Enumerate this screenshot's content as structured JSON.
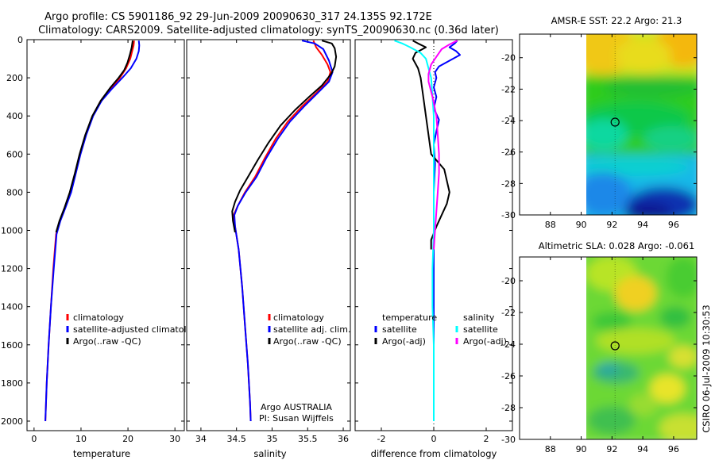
{
  "header": {
    "title_line1": "Argo profile: CS 5901186_92 29-Jun-2009 20090630_317 24.135S 92.172E",
    "title_line2": "Climatology: CARS2009. Satellite-adjusted climatology: synTS_20090630.nc (0.36d later)"
  },
  "side_label": "CSIRO 06-Jul-2009 10:30:53",
  "colors": {
    "red": "#ff0000",
    "blue": "#0000ff",
    "black": "#000000",
    "cyan": "#00ffff",
    "magenta": "#ff00ff"
  },
  "chart_data": [
    {
      "type": "line",
      "id": "temperature",
      "xlabel": "temperature",
      "ylabel": "",
      "xlim": [
        -1.5,
        32
      ],
      "ylim": [
        2050,
        0
      ],
      "xticks": [
        0,
        10,
        20,
        30
      ],
      "yticks": [
        0,
        200,
        400,
        600,
        800,
        1000,
        1200,
        1400,
        1600,
        1800,
        2000
      ],
      "legend": [
        "climatology",
        "satellite-adjusted climatology",
        "Argo(..raw -QC)"
      ],
      "series": [
        {
          "name": "climatology",
          "color": "red",
          "points": [
            [
              21.3,
              5
            ],
            [
              21.2,
              30
            ],
            [
              20.9,
              60
            ],
            [
              20.5,
              100
            ],
            [
              19.6,
              150
            ],
            [
              18.3,
              200
            ],
            [
              16.2,
              260
            ],
            [
              14.2,
              320
            ],
            [
              12.5,
              400
            ],
            [
              11.0,
              500
            ],
            [
              9.8,
              600
            ],
            [
              8.8,
              700
            ],
            [
              7.8,
              800
            ],
            [
              6.6,
              880
            ],
            [
              5.5,
              950
            ],
            [
              4.7,
              1020
            ],
            [
              4.1,
              1200
            ],
            [
              3.6,
              1400
            ],
            [
              3.1,
              1600
            ],
            [
              2.7,
              1800
            ],
            [
              2.4,
              2000
            ]
          ]
        },
        {
          "name": "satellite-adjusted climatology",
          "color": "blue",
          "points": [
            [
              22.3,
              5
            ],
            [
              22.4,
              30
            ],
            [
              22.3,
              60
            ],
            [
              21.8,
              100
            ],
            [
              20.6,
              150
            ],
            [
              18.8,
              200
            ],
            [
              16.5,
              260
            ],
            [
              14.4,
              320
            ],
            [
              12.6,
              400
            ],
            [
              11.1,
              500
            ],
            [
              9.9,
              600
            ],
            [
              8.9,
              700
            ],
            [
              7.9,
              800
            ],
            [
              6.7,
              880
            ],
            [
              5.6,
              950
            ],
            [
              4.8,
              1020
            ],
            [
              4.2,
              1200
            ],
            [
              3.6,
              1400
            ],
            [
              3.1,
              1600
            ],
            [
              2.7,
              1800
            ],
            [
              2.4,
              2000
            ]
          ]
        },
        {
          "name": "Argo(..raw -QC)",
          "color": "black",
          "points": [
            [
              21.0,
              5
            ],
            [
              20.8,
              40
            ],
            [
              20.4,
              80
            ],
            [
              19.9,
              120
            ],
            [
              19.2,
              160
            ],
            [
              18.0,
              200
            ],
            [
              16.3,
              250
            ],
            [
              14.2,
              320
            ],
            [
              12.4,
              400
            ],
            [
              10.9,
              500
            ],
            [
              9.7,
              600
            ],
            [
              8.7,
              700
            ],
            [
              7.6,
              800
            ],
            [
              6.5,
              880
            ],
            [
              5.4,
              950
            ],
            [
              4.7,
              1010
            ]
          ]
        }
      ],
      "annotation": []
    },
    {
      "type": "line",
      "id": "salinity",
      "xlabel": "salinity",
      "xlim": [
        33.8,
        36.1
      ],
      "ylim": [
        2050,
        0
      ],
      "xticks": [
        34,
        34.5,
        35,
        35.5,
        36
      ],
      "yticks": [
        0,
        200,
        400,
        600,
        800,
        1000,
        1200,
        1400,
        1600,
        1800,
        2000
      ],
      "legend": [
        "climatology",
        "satellite adj. clim.",
        "Argo(..raw -QC)"
      ],
      "annotation": [
        "Argo AUSTRALIA",
        "PI: Susan Wijffels"
      ],
      "series": [
        {
          "name": "climatology",
          "color": "red",
          "points": [
            [
              35.58,
              5
            ],
            [
              35.62,
              40
            ],
            [
              35.7,
              80
            ],
            [
              35.78,
              130
            ],
            [
              35.82,
              170
            ],
            [
              35.78,
              220
            ],
            [
              35.62,
              280
            ],
            [
              35.42,
              350
            ],
            [
              35.22,
              430
            ],
            [
              35.05,
              520
            ],
            [
              34.9,
              620
            ],
            [
              34.76,
              720
            ],
            [
              34.62,
              800
            ],
            [
              34.52,
              870
            ],
            [
              34.46,
              920
            ],
            [
              34.48,
              980
            ],
            [
              34.53,
              1100
            ],
            [
              34.58,
              1300
            ],
            [
              34.62,
              1500
            ],
            [
              34.66,
              1700
            ],
            [
              34.69,
              1900
            ],
            [
              34.7,
              2000
            ]
          ]
        },
        {
          "name": "satellite adj. clim.",
          "color": "blue",
          "points": [
            [
              35.42,
              5
            ],
            [
              35.6,
              20
            ],
            [
              35.72,
              50
            ],
            [
              35.8,
              110
            ],
            [
              35.85,
              170
            ],
            [
              35.8,
              220
            ],
            [
              35.64,
              280
            ],
            [
              35.45,
              350
            ],
            [
              35.25,
              430
            ],
            [
              35.08,
              520
            ],
            [
              34.92,
              620
            ],
            [
              34.78,
              720
            ],
            [
              34.63,
              800
            ],
            [
              34.52,
              870
            ],
            [
              34.47,
              920
            ],
            [
              34.48,
              980
            ],
            [
              34.53,
              1100
            ],
            [
              34.58,
              1300
            ],
            [
              34.62,
              1500
            ],
            [
              34.66,
              1700
            ],
            [
              34.69,
              1900
            ],
            [
              34.7,
              2000
            ]
          ]
        },
        {
          "name": "Argo(..raw -QC)",
          "color": "black",
          "points": [
            [
              35.7,
              5
            ],
            [
              35.84,
              20
            ],
            [
              35.88,
              45
            ],
            [
              35.9,
              90
            ],
            [
              35.88,
              140
            ],
            [
              35.83,
              180
            ],
            [
              35.7,
              240
            ],
            [
              35.52,
              300
            ],
            [
              35.32,
              370
            ],
            [
              35.12,
              450
            ],
            [
              34.95,
              540
            ],
            [
              34.8,
              630
            ],
            [
              34.66,
              720
            ],
            [
              34.55,
              790
            ],
            [
              34.48,
              850
            ],
            [
              34.44,
              900
            ],
            [
              34.45,
              950
            ],
            [
              34.48,
              1010
            ]
          ]
        }
      ]
    },
    {
      "type": "line",
      "id": "difference",
      "xlabel": "difference from climatology",
      "xlim": [
        -3,
        3
      ],
      "ylim": [
        2050,
        0
      ],
      "xticks": [
        -2,
        0,
        2
      ],
      "yticks": [
        0,
        200,
        400,
        600,
        800,
        1000,
        1200,
        1400,
        1600,
        1800,
        2000
      ],
      "legend_headers": [
        "temperature",
        "salinity"
      ],
      "legend": [
        "satellite",
        "Argo(-adj)",
        "satellite",
        "Argo(-adj)"
      ],
      "annotation": [],
      "series": [
        {
          "name": "temperature satellite",
          "color": "blue",
          "points": [
            [
              0.9,
              5
            ],
            [
              0.8,
              20
            ],
            [
              0.6,
              40
            ],
            [
              0.85,
              60
            ],
            [
              1.0,
              80
            ],
            [
              0.6,
              110
            ],
            [
              0.2,
              140
            ],
            [
              0.05,
              170
            ],
            [
              0.1,
              200
            ],
            [
              0.0,
              250
            ],
            [
              0.1,
              300
            ],
            [
              0.0,
              360
            ],
            [
              0.2,
              420
            ],
            [
              0.1,
              480
            ],
            [
              0.0,
              550
            ],
            [
              0.05,
              650
            ],
            [
              0.0,
              800
            ],
            [
              0.0,
              1000
            ],
            [
              0.0,
              1400
            ],
            [
              0.0,
              2000
            ]
          ]
        },
        {
          "name": "temperature Argo(-adj)",
          "color": "black",
          "points": [
            [
              -0.8,
              5
            ],
            [
              -0.6,
              20
            ],
            [
              -0.3,
              40
            ],
            [
              -0.7,
              70
            ],
            [
              -0.8,
              100
            ],
            [
              -0.6,
              150
            ],
            [
              -0.5,
              200
            ],
            [
              -0.4,
              300
            ],
            [
              -0.3,
              400
            ],
            [
              -0.2,
              500
            ],
            [
              -0.1,
              600
            ],
            [
              0.4,
              680
            ],
            [
              0.5,
              740
            ],
            [
              0.6,
              800
            ],
            [
              0.5,
              860
            ],
            [
              0.3,
              920
            ],
            [
              0.1,
              980
            ],
            [
              -0.1,
              1050
            ],
            [
              -0.1,
              1100
            ]
          ]
        },
        {
          "name": "salinity satellite",
          "color": "cyan",
          "points": [
            [
              -1.5,
              5
            ],
            [
              -1.2,
              20
            ],
            [
              -0.9,
              40
            ],
            [
              -0.5,
              70
            ],
            [
              -0.3,
              100
            ],
            [
              -0.2,
              150
            ],
            [
              -0.1,
              200
            ],
            [
              -0.05,
              300
            ],
            [
              0.0,
              400
            ],
            [
              0.0,
              600
            ],
            [
              0.0,
              800
            ],
            [
              0.0,
              1000
            ],
            [
              -0.05,
              1200
            ],
            [
              -0.05,
              1400
            ],
            [
              0.0,
              1600
            ],
            [
              0.0,
              1800
            ],
            [
              0.0,
              2000
            ]
          ]
        },
        {
          "name": "salinity Argo(-adj)",
          "color": "magenta",
          "points": [
            [
              0.9,
              5
            ],
            [
              0.6,
              25
            ],
            [
              0.3,
              50
            ],
            [
              0.1,
              90
            ],
            [
              -0.1,
              130
            ],
            [
              -0.2,
              180
            ],
            [
              -0.2,
              220
            ],
            [
              -0.05,
              300
            ],
            [
              0.1,
              400
            ],
            [
              0.15,
              500
            ],
            [
              0.2,
              600
            ],
            [
              0.2,
              700
            ],
            [
              0.15,
              800
            ],
            [
              0.1,
              900
            ],
            [
              0.05,
              1000
            ],
            [
              0.0,
              1100
            ]
          ]
        }
      ]
    },
    {
      "type": "heatmap",
      "id": "sst_map",
      "title": "AMSR-E SST: 22.2 Argo: 21.3",
      "xlim": [
        86,
        97.5
      ],
      "ylim": [
        -30,
        -18.5
      ],
      "xticks": [
        88,
        90,
        92,
        94,
        96
      ],
      "yticks": [
        -20,
        -22,
        -24,
        -26,
        -28,
        -30
      ],
      "data_x_start": 90,
      "argo_position": [
        92.2,
        -24.1
      ]
    },
    {
      "type": "heatmap",
      "id": "sla_map",
      "title": "Altimetric SLA: 0.028 Argo: -0.061",
      "xlim": [
        86,
        97.5
      ],
      "ylim": [
        -30,
        -18.5
      ],
      "xticks": [
        88,
        90,
        92,
        94,
        96
      ],
      "yticks": [
        -20,
        -22,
        -24,
        -26,
        -28,
        -30
      ],
      "data_x_start": 90,
      "argo_position": [
        92.2,
        -24.1
      ]
    }
  ]
}
